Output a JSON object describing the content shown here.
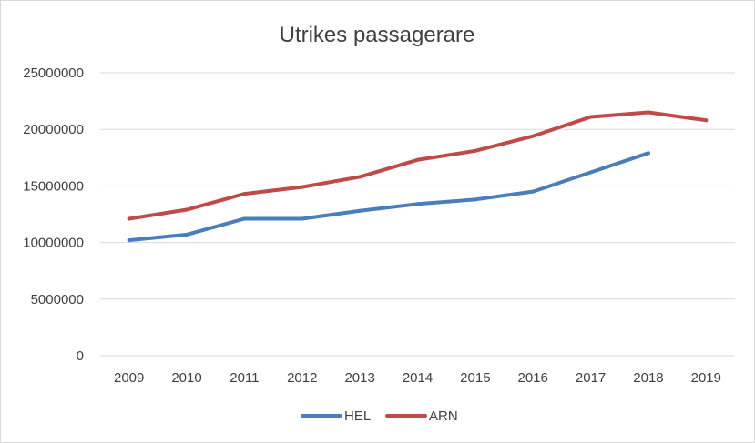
{
  "chart_data": {
    "type": "line",
    "title": "Utrikes passagerare",
    "xlabel": "",
    "ylabel": "",
    "categories": [
      "2009",
      "2010",
      "2011",
      "2012",
      "2013",
      "2014",
      "2015",
      "2016",
      "2017",
      "2018",
      "2019"
    ],
    "yticks": [
      "0",
      "5000000",
      "10000000",
      "15000000",
      "20000000",
      "25000000"
    ],
    "ylim": [
      0,
      25000000
    ],
    "grid": true,
    "legend_position": "bottom",
    "series": [
      {
        "name": "HEL",
        "color": "#4a7ebb",
        "values": [
          10200000,
          10700000,
          12100000,
          12100000,
          12800000,
          13400000,
          13800000,
          14500000,
          16200000,
          17900000,
          null
        ]
      },
      {
        "name": "ARN",
        "color": "#be4b48",
        "values": [
          12100000,
          12900000,
          14300000,
          14900000,
          15800000,
          17300000,
          18100000,
          19400000,
          21100000,
          21500000,
          20800000
        ]
      }
    ]
  }
}
